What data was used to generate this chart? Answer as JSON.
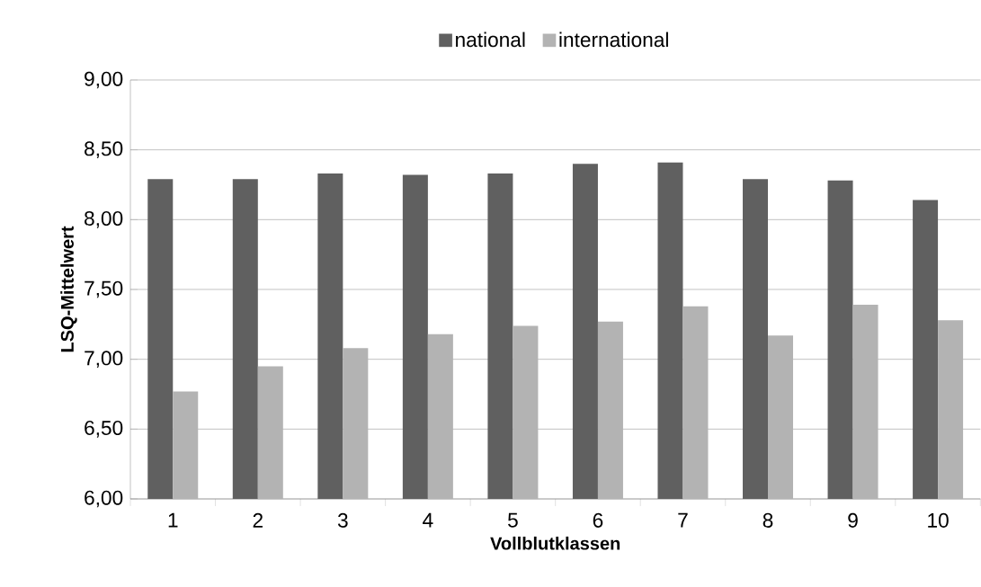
{
  "chart_data": {
    "type": "bar",
    "xlabel": "Vollblutklassen",
    "ylabel": "LSQ-Mittelwert",
    "categories": [
      "1",
      "2",
      "3",
      "4",
      "5",
      "6",
      "7",
      "8",
      "9",
      "10"
    ],
    "series": [
      {
        "name": "national",
        "color": "#606060",
        "values": [
          8.29,
          8.29,
          8.33,
          8.32,
          8.33,
          8.4,
          8.41,
          8.29,
          8.28,
          8.14
        ]
      },
      {
        "name": "international",
        "color": "#b3b3b3",
        "values": [
          6.77,
          6.95,
          7.08,
          7.18,
          7.24,
          7.27,
          7.38,
          7.17,
          7.39,
          7.28
        ]
      }
    ],
    "ylim": [
      6,
      9
    ],
    "yticks": [
      {
        "value": 6,
        "label": "6,00"
      },
      {
        "value": 6.5,
        "label": "6,50"
      },
      {
        "value": 7,
        "label": "7,00"
      },
      {
        "value": 7.5,
        "label": "7,50"
      },
      {
        "value": 8,
        "label": "8,00"
      },
      {
        "value": 8.5,
        "label": "8,50"
      },
      {
        "value": 9,
        "label": "9,00"
      }
    ],
    "grid": "y",
    "legend": "top"
  }
}
